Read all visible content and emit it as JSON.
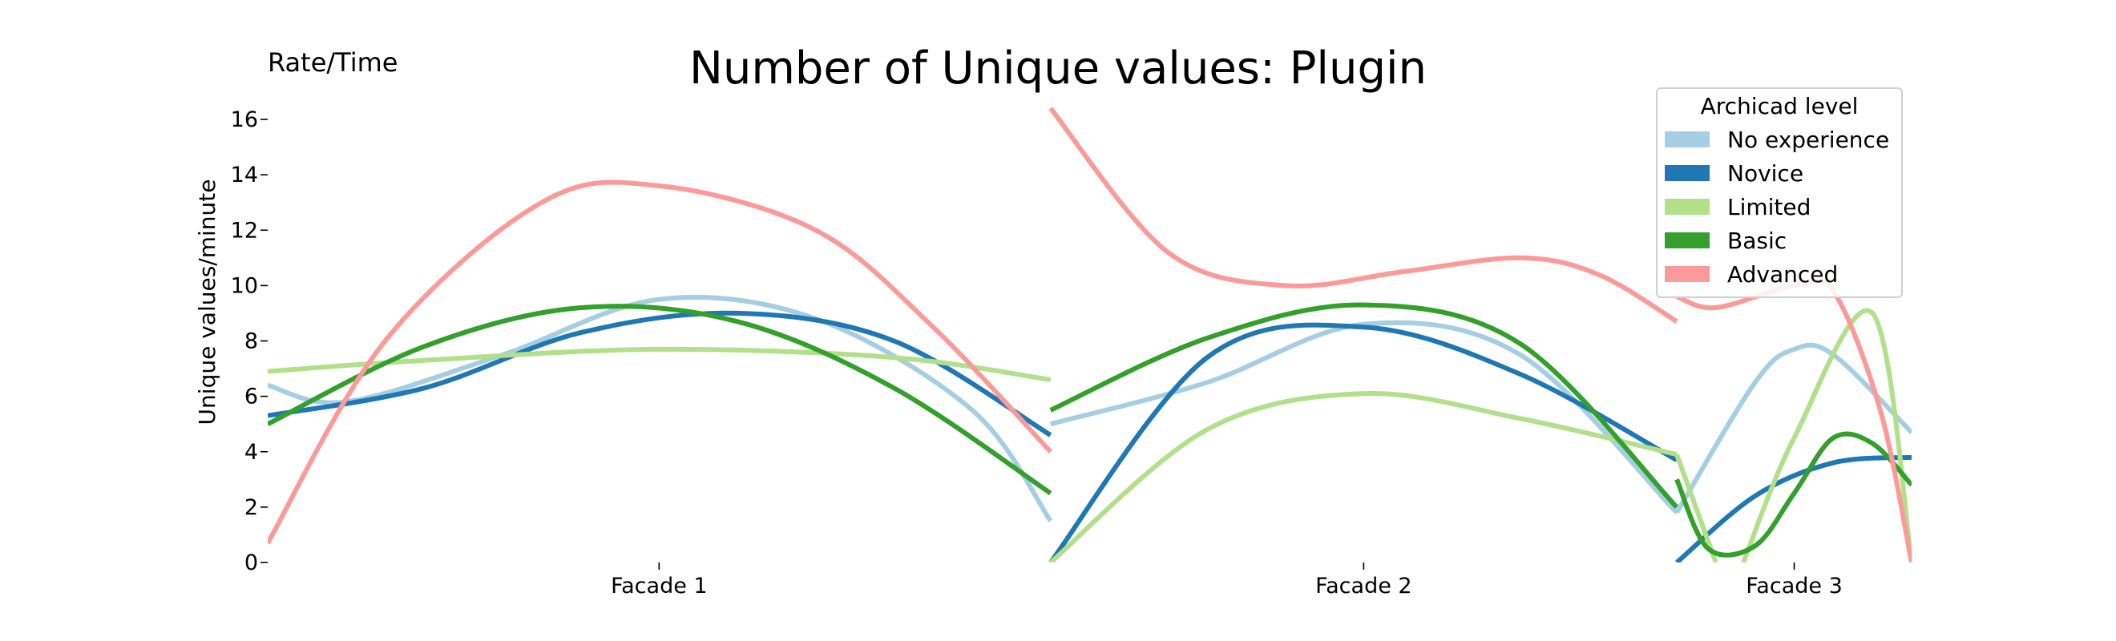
{
  "page": {
    "corner_label": "Rate/Time"
  },
  "chart_data": {
    "type": "line",
    "title": "Number of Unique values: Plugin",
    "xlabel": "",
    "ylabel": "Unique values/minute",
    "ylim": [
      0,
      16
    ],
    "yticks": [
      0,
      2,
      4,
      6,
      8,
      10,
      12,
      14,
      16
    ],
    "ytick_labels": [
      "0",
      "2",
      "4",
      "6",
      "8",
      "10",
      "12",
      "14",
      "16"
    ],
    "grid": false,
    "categories": [
      "Facade 1",
      "Facade 2",
      "Facade 3"
    ],
    "legend": {
      "title": "Archicad level",
      "placement": "top-right",
      "entries": [
        {
          "name": "No experience",
          "color": "#a6cee3"
        },
        {
          "name": "Novice",
          "color": "#1f78b4"
        },
        {
          "name": "Limited",
          "color": "#b2df8a"
        },
        {
          "name": "Basic",
          "color": "#33a02c"
        },
        {
          "name": "Advanced",
          "color": "#fb9a99"
        }
      ]
    },
    "segments": [
      {
        "x_start": 0.0,
        "x_end": 1.0,
        "category": "Facade 1"
      },
      {
        "x_start": 1.0,
        "x_end": 1.8,
        "category": "Facade 2"
      },
      {
        "x_start": 1.8,
        "x_end": 2.1,
        "category": "Facade 3"
      }
    ],
    "series": [
      {
        "name": "No experience",
        "color": "#a6cee3",
        "segments": [
          [
            [
              0.0,
              6.4
            ],
            [
              0.1,
              5.8
            ],
            [
              0.3,
              7.5
            ],
            [
              0.5,
              9.5
            ],
            [
              0.7,
              8.8
            ],
            [
              0.9,
              5.5
            ],
            [
              1.0,
              1.5
            ]
          ],
          [
            [
              1.0,
              5.0
            ],
            [
              1.2,
              6.5
            ],
            [
              1.4,
              8.6
            ],
            [
              1.6,
              7.5
            ],
            [
              1.8,
              1.8
            ]
          ],
          [
            [
              1.8,
              1.8
            ],
            [
              1.9,
              6.5
            ],
            [
              1.95,
              7.7
            ],
            [
              2.0,
              7.5
            ],
            [
              2.1,
              4.7
            ]
          ]
        ]
      },
      {
        "name": "Novice",
        "color": "#1f78b4",
        "segments": [
          [
            [
              0.0,
              5.3
            ],
            [
              0.2,
              6.3
            ],
            [
              0.4,
              8.3
            ],
            [
              0.6,
              9.0
            ],
            [
              0.8,
              8.0
            ],
            [
              1.0,
              4.6
            ]
          ],
          [
            [
              1.0,
              0.0
            ],
            [
              1.2,
              7.4
            ],
            [
              1.4,
              8.5
            ],
            [
              1.6,
              6.8
            ],
            [
              1.8,
              3.7
            ]
          ],
          [
            [
              1.8,
              0.0
            ],
            [
              1.9,
              2.4
            ],
            [
              2.0,
              3.6
            ],
            [
              2.1,
              3.8
            ]
          ]
        ]
      },
      {
        "name": "Limited",
        "color": "#b2df8a",
        "segments": [
          [
            [
              0.0,
              6.9
            ],
            [
              0.2,
              7.3
            ],
            [
              0.5,
              7.7
            ],
            [
              0.8,
              7.4
            ],
            [
              1.0,
              6.6
            ]
          ],
          [
            [
              1.0,
              0.0
            ],
            [
              1.2,
              4.8
            ],
            [
              1.4,
              6.1
            ],
            [
              1.6,
              5.2
            ],
            [
              1.8,
              3.9
            ]
          ],
          [
            [
              1.8,
              3.9
            ],
            [
              1.85,
              0.0
            ]
          ],
          [
            [
              1.885,
              0.0
            ],
            [
              1.95,
              4.5
            ],
            [
              2.05,
              9.0
            ],
            [
              2.1,
              0.0
            ]
          ]
        ]
      },
      {
        "name": "Basic",
        "color": "#33a02c",
        "segments": [
          [
            [
              0.0,
              5.0
            ],
            [
              0.2,
              7.8
            ],
            [
              0.4,
              9.2
            ],
            [
              0.6,
              8.7
            ],
            [
              0.8,
              6.3
            ],
            [
              1.0,
              2.5
            ]
          ],
          [
            [
              1.0,
              5.5
            ],
            [
              1.2,
              8.1
            ],
            [
              1.4,
              9.3
            ],
            [
              1.6,
              7.9
            ],
            [
              1.8,
              2.0
            ]
          ],
          [
            [
              1.8,
              3.0
            ],
            [
              1.84,
              0.5
            ],
            [
              1.9,
              0.6
            ],
            [
              1.95,
              2.5
            ],
            [
              2.0,
              4.5
            ],
            [
              2.05,
              4.3
            ],
            [
              2.1,
              2.8
            ]
          ]
        ]
      },
      {
        "name": "Advanced",
        "color": "#fb9a99",
        "segments": [
          [
            [
              0.0,
              0.7
            ],
            [
              0.15,
              8.0
            ],
            [
              0.35,
              13.0
            ],
            [
              0.5,
              13.6
            ],
            [
              0.7,
              12.0
            ],
            [
              0.85,
              8.5
            ],
            [
              1.0,
              4.0
            ]
          ],
          [
            [
              1.0,
              16.4
            ],
            [
              1.15,
              11.2
            ],
            [
              1.3,
              10.0
            ],
            [
              1.45,
              10.5
            ],
            [
              1.6,
              11.0
            ],
            [
              1.7,
              10.4
            ],
            [
              1.8,
              8.7
            ]
          ],
          [
            [
              1.8,
              9.6
            ],
            [
              1.85,
              9.2
            ],
            [
              1.95,
              10.0
            ],
            [
              2.0,
              9.8
            ],
            [
              2.06,
              5.5
            ],
            [
              2.1,
              0.0
            ]
          ]
        ]
      }
    ]
  }
}
